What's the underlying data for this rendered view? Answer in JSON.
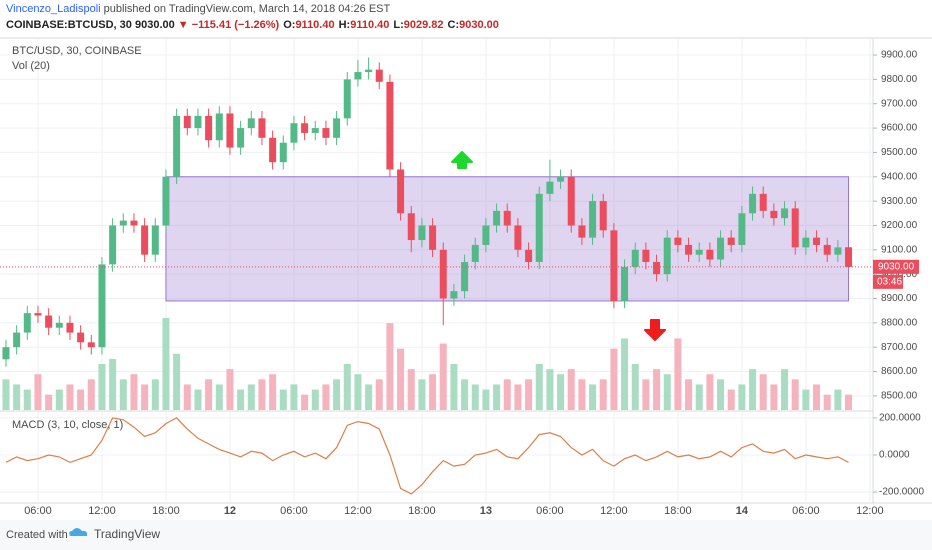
{
  "header": {
    "author": "Vincenzo_Ladispoli",
    "published": "published on TradingView.com, March 14, 2018 04:26 EST",
    "symbol": "COINBASE:BTCUSD, 30",
    "price": "9030.00",
    "change": "▼ −115.41 (−1.26%)",
    "ohlc": [
      {
        "label": "O:",
        "value": "9110.40"
      },
      {
        "label": "H:",
        "value": "9110.40"
      },
      {
        "label": "L:",
        "value": "9029.82"
      },
      {
        "label": "C:",
        "value": "9030.00"
      }
    ]
  },
  "footer": {
    "created": "Created with",
    "brand": "TradingView"
  },
  "chart_data": {
    "type": "candlestick",
    "title": "BTC/USD, 30, COINBASE",
    "up_color": "#53b987",
    "down_color": "#eb4d5c",
    "x": [
      3,
      4,
      5,
      6,
      7,
      8,
      9,
      10,
      11,
      12,
      13,
      14,
      15,
      16,
      17,
      18,
      19,
      20,
      21,
      22,
      23,
      24,
      25,
      26,
      27,
      28,
      29,
      30,
      31,
      32,
      33,
      34,
      35,
      36,
      37,
      38,
      39,
      40,
      41,
      42,
      43,
      44,
      45,
      46,
      47,
      48,
      49,
      50,
      51,
      52,
      53,
      54,
      55,
      56,
      57,
      58,
      59,
      60,
      61,
      62,
      63,
      64,
      65,
      66,
      67,
      68,
      69,
      70,
      71,
      72,
      73,
      74,
      75,
      76,
      77,
      78,
      79,
      80,
      81,
      82
    ],
    "open": [
      8650,
      8700,
      8760,
      8840,
      8830,
      8780,
      8800,
      8760,
      8720,
      8700,
      9040,
      9200,
      9220,
      9200,
      9080,
      9200,
      9400,
      9650,
      9600,
      9650,
      9550,
      9660,
      9520,
      9600,
      9640,
      9560,
      9460,
      9540,
      9620,
      9580,
      9600,
      9560,
      9640,
      9800,
      9830,
      9840,
      9790,
      9430,
      9250,
      9140,
      9200,
      9100,
      8900,
      8930,
      9050,
      9120,
      9200,
      9260,
      9200,
      9100,
      9050,
      9330,
      9380,
      9400,
      9200,
      9150,
      9300,
      9180,
      8890,
      9030,
      9100,
      9050,
      9000,
      9150,
      9120,
      9080,
      9100,
      9060,
      9150,
      9120,
      9250,
      9330,
      9260,
      9230,
      9270,
      9110,
      9150,
      9120,
      9080,
      9110.4
    ],
    "high": [
      8730,
      8790,
      8870,
      8870,
      8860,
      8830,
      8830,
      8790,
      8750,
      9070,
      9230,
      9250,
      9250,
      9230,
      9230,
      9430,
      9680,
      9680,
      9680,
      9680,
      9690,
      9690,
      9630,
      9670,
      9670,
      9590,
      9570,
      9650,
      9650,
      9630,
      9630,
      9670,
      9830,
      9880,
      9890,
      9870,
      9820,
      9460,
      9280,
      9230,
      9230,
      9130,
      8960,
      9080,
      9150,
      9230,
      9290,
      9290,
      9230,
      9130,
      9360,
      9470,
      9430,
      9430,
      9230,
      9330,
      9330,
      9210,
      9060,
      9130,
      9130,
      9080,
      9180,
      9180,
      9150,
      9130,
      9130,
      9180,
      9180,
      9280,
      9360,
      9360,
      9290,
      9300,
      9300,
      9180,
      9180,
      9150,
      9140,
      9110.4
    ],
    "low": [
      8620,
      8670,
      8730,
      8800,
      8750,
      8750,
      8730,
      8690,
      8670,
      8670,
      9010,
      9170,
      9170,
      9050,
      9050,
      9170,
      9370,
      9570,
      9570,
      9520,
      9520,
      9490,
      9490,
      9570,
      9530,
      9430,
      9430,
      9510,
      9550,
      9550,
      9530,
      9530,
      9610,
      9770,
      9800,
      9760,
      9400,
      9220,
      9090,
      9110,
      9070,
      8790,
      8870,
      8900,
      9020,
      9090,
      9170,
      9170,
      9070,
      9020,
      9020,
      9300,
      9350,
      9170,
      9120,
      9120,
      9150,
      8860,
      8860,
      9000,
      9020,
      8970,
      8970,
      9090,
      9050,
      9050,
      9030,
      9030,
      9090,
      9090,
      9220,
      9230,
      9200,
      9200,
      9080,
      9080,
      9090,
      9050,
      9050,
      9029.82
    ],
    "close": [
      8700,
      8760,
      8840,
      8830,
      8780,
      8800,
      8760,
      8720,
      8700,
      9040,
      9200,
      9220,
      9200,
      9080,
      9200,
      9400,
      9650,
      9600,
      9650,
      9550,
      9660,
      9520,
      9600,
      9640,
      9560,
      9460,
      9540,
      9620,
      9580,
      9600,
      9560,
      9640,
      9800,
      9830,
      9840,
      9790,
      9430,
      9250,
      9140,
      9200,
      9100,
      8900,
      8930,
      9050,
      9120,
      9200,
      9260,
      9200,
      9100,
      9050,
      9330,
      9380,
      9400,
      9200,
      9150,
      9300,
      9180,
      8890,
      9030,
      9100,
      9050,
      9000,
      9150,
      9120,
      9080,
      9100,
      9060,
      9150,
      9120,
      9250,
      9330,
      9260,
      9230,
      9270,
      9110,
      9150,
      9120,
      9080,
      9110,
      9030
    ],
    "xlim": [
      2.44,
      84.2
    ],
    "xticks": [
      {
        "value": 6,
        "label": "06:00"
      },
      {
        "value": 12,
        "label": "12:00"
      },
      {
        "value": 18,
        "label": "18:00"
      },
      {
        "value": 24,
        "label": "12"
      },
      {
        "value": 30,
        "label": "06:00"
      },
      {
        "value": 36,
        "label": "12:00"
      },
      {
        "value": 42,
        "label": "18:00"
      },
      {
        "value": 48,
        "label": "13"
      },
      {
        "value": 54,
        "label": "06:00"
      },
      {
        "value": 60,
        "label": "12:00"
      },
      {
        "value": 66,
        "label": "18:00"
      },
      {
        "value": 72,
        "label": "14"
      },
      {
        "value": 78,
        "label": "06:00"
      },
      {
        "value": 84,
        "label": "12:00"
      }
    ],
    "ylim": [
      8442,
      9970
    ],
    "yticks": [
      {
        "value": 8500,
        "label": "8500.00"
      },
      {
        "value": 8600,
        "label": "8600.00"
      },
      {
        "value": 8700,
        "label": "8700.00"
      },
      {
        "value": 8800,
        "label": "8800.00"
      },
      {
        "value": 8900,
        "label": "8900.00"
      },
      {
        "value": 9000,
        "label": "9000.00"
      },
      {
        "value": 9100,
        "label": "9100.00"
      },
      {
        "value": 9200,
        "label": "9200.00"
      },
      {
        "value": 9300,
        "label": "9300.00"
      },
      {
        "value": 9400,
        "label": "9400.00"
      },
      {
        "value": 9500,
        "label": "9500.00"
      },
      {
        "value": 9600,
        "label": "9600.00"
      },
      {
        "value": 9700,
        "label": "9700.00"
      },
      {
        "value": 9800,
        "label": "9800.00"
      },
      {
        "value": 9900,
        "label": "9900.00"
      }
    ],
    "last_price": {
      "value": 9030,
      "label": "9030.00"
    },
    "countdown": "03:46",
    "range_box": {
      "top": 9400,
      "bottom": 8890,
      "x": [
        18,
        82
      ]
    },
    "volume": {
      "name": "Vol (20)",
      "up_color": "#a9dcc3",
      "down_color": "#f5b3be",
      "values": [
        30,
        25,
        20,
        35,
        15,
        20,
        25,
        20,
        30,
        45,
        50,
        30,
        35,
        25,
        30,
        90,
        55,
        25,
        20,
        30,
        25,
        40,
        20,
        25,
        30,
        35,
        20,
        25,
        15,
        20,
        25,
        30,
        45,
        35,
        25,
        30,
        85,
        60,
        40,
        30,
        35,
        65,
        45,
        30,
        25,
        20,
        25,
        30,
        25,
        30,
        45,
        40,
        35,
        40,
        30,
        25,
        30,
        60,
        70,
        45,
        30,
        40,
        35,
        70,
        30,
        25,
        35,
        30,
        20,
        25,
        40,
        35,
        25,
        40,
        30,
        20,
        25,
        15,
        20,
        15
      ]
    },
    "macd": {
      "name": "MACD (3, 10, close, 1)",
      "color": "#d9804a",
      "ylim": [
        -259,
        232
      ],
      "yticks": [
        {
          "value": 200,
          "label": "200.0000"
        },
        {
          "value": 0,
          "label": "0.0000"
        },
        {
          "value": -200,
          "label": "-200.0000"
        }
      ],
      "values": [
        -40,
        -10,
        -30,
        -20,
        0,
        -10,
        -40,
        -20,
        0,
        80,
        200,
        190,
        150,
        100,
        120,
        170,
        200,
        140,
        90,
        60,
        30,
        10,
        -10,
        20,
        10,
        -30,
        0,
        20,
        -10,
        10,
        -20,
        40,
        160,
        180,
        170,
        140,
        0,
        -180,
        -210,
        -160,
        -90,
        -30,
        -60,
        -50,
        0,
        10,
        30,
        -10,
        -20,
        40,
        110,
        120,
        100,
        40,
        0,
        30,
        -30,
        -60,
        -20,
        0,
        -30,
        -10,
        20,
        -10,
        0,
        -20,
        -10,
        20,
        -10,
        40,
        60,
        20,
        10,
        30,
        -20,
        0,
        -10,
        -20,
        -10,
        -40
      ]
    }
  }
}
